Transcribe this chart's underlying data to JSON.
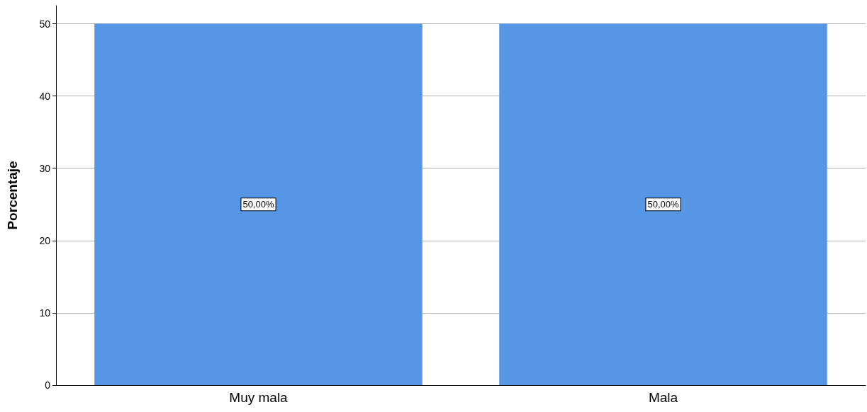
{
  "chart_data": {
    "type": "bar",
    "ylabel": "Porcentaje",
    "categories": [
      "Muy mala",
      "Mala"
    ],
    "values": [
      50,
      50
    ],
    "value_labels": [
      "50,00%",
      "50,00%"
    ],
    "color": "#5596e5",
    "ylim": [
      0,
      52.5
    ],
    "yticks": [
      0,
      10,
      20,
      30,
      40,
      50
    ],
    "grid": "y"
  }
}
